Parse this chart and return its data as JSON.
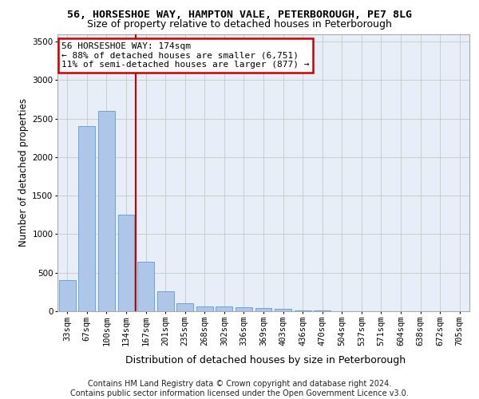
{
  "title1": "56, HORSESHOE WAY, HAMPTON VALE, PETERBOROUGH, PE7 8LG",
  "title2": "Size of property relative to detached houses in Peterborough",
  "xlabel": "Distribution of detached houses by size in Peterborough",
  "ylabel": "Number of detached properties",
  "categories": [
    "33sqm",
    "67sqm",
    "100sqm",
    "134sqm",
    "167sqm",
    "201sqm",
    "235sqm",
    "268sqm",
    "302sqm",
    "336sqm",
    "369sqm",
    "403sqm",
    "436sqm",
    "470sqm",
    "504sqm",
    "537sqm",
    "571sqm",
    "604sqm",
    "638sqm",
    "672sqm",
    "705sqm"
  ],
  "values": [
    400,
    2400,
    2600,
    1250,
    640,
    260,
    100,
    65,
    65,
    50,
    40,
    30,
    15,
    8,
    5,
    3,
    2,
    1,
    1,
    0,
    0
  ],
  "bar_color": "#aec6e8",
  "bar_edge_color": "#5b9bd5",
  "red_line_x": 3.5,
  "red_line_color": "#cc0000",
  "annotation_line1": "56 HORSESHOE WAY: 174sqm",
  "annotation_line2": "← 88% of detached houses are smaller (6,751)",
  "annotation_line3": "11% of semi-detached houses are larger (877) →",
  "annotation_box_color": "white",
  "annotation_box_edge": "#cc0000",
  "ylim": [
    0,
    3600
  ],
  "yticks": [
    0,
    500,
    1000,
    1500,
    2000,
    2500,
    3000,
    3500
  ],
  "grid_color": "#cccccc",
  "bg_color": "#e8eef8",
  "footer": "Contains HM Land Registry data © Crown copyright and database right 2024.\nContains public sector information licensed under the Open Government Licence v3.0.",
  "title1_fontsize": 9.5,
  "title2_fontsize": 9,
  "xlabel_fontsize": 9,
  "ylabel_fontsize": 8.5,
  "tick_fontsize": 7.5,
  "annotation_fontsize": 8,
  "footer_fontsize": 7
}
